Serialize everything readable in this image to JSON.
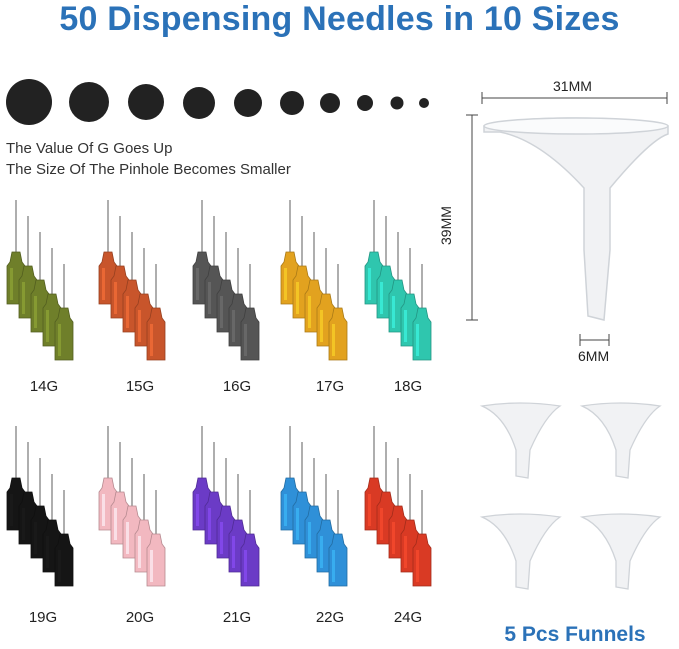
{
  "title": "50 Dispensing Needles in 10 Sizes",
  "caption_line1": "The Value Of G Goes Up",
  "caption_line2": "The Size Of The Pinhole Becomes Smaller",
  "needle_groups": [
    {
      "label": "14G",
      "color": "#6f7f2a"
    },
    {
      "label": "15G",
      "color": "#c8552b"
    },
    {
      "label": "16G",
      "color": "#555555"
    },
    {
      "label": "17G",
      "color": "#e2a21f"
    },
    {
      "label": "18G",
      "color": "#2fc6ae"
    },
    {
      "label": "19G",
      "color": "#151515"
    },
    {
      "label": "20G",
      "color": "#f2b8c0"
    },
    {
      "label": "21G",
      "color": "#6b3bc6"
    },
    {
      "label": "22G",
      "color": "#2f90d8"
    },
    {
      "label": "24G",
      "color": "#d93a24"
    }
  ],
  "funnel_dims": {
    "width": "31MM",
    "height": "39MM",
    "tip": "6MM"
  },
  "funnels_label": "5 Pcs Funnels"
}
